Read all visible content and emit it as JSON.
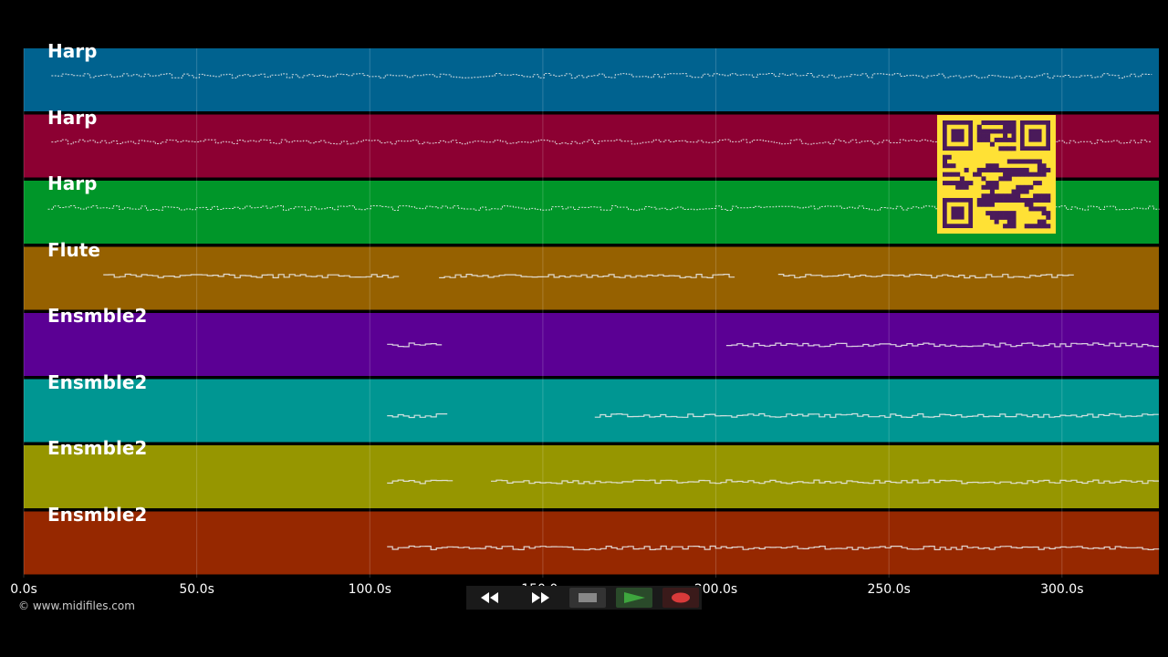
{
  "tracks": [
    {
      "name": "Harp",
      "color": "#00628f"
    },
    {
      "name": "Harp",
      "color": "#8c0032"
    },
    {
      "name": "Harp",
      "color": "#009629"
    },
    {
      "name": "Flute",
      "color": "#966100"
    },
    {
      "name": "Ensmble2",
      "color": "#5b0094"
    },
    {
      "name": "Ensmble2",
      "color": "#009692"
    },
    {
      "name": "Ensmble2",
      "color": "#969600"
    },
    {
      "name": "Ensmble2",
      "color": "#962800"
    }
  ],
  "timeline": {
    "start_seconds": 0,
    "end_seconds": 328,
    "ticks": [
      {
        "value": 0,
        "label": "0.0s"
      },
      {
        "value": 50,
        "label": "50.0s"
      },
      {
        "value": 100,
        "label": "100.0s"
      },
      {
        "value": 150,
        "label": "150.0s"
      },
      {
        "value": 200,
        "label": "200.0s"
      },
      {
        "value": 250,
        "label": "250.0s"
      },
      {
        "value": 300,
        "label": "300.0s"
      }
    ]
  },
  "copyright": "© www.midifiles.com",
  "transport": {
    "buttons": [
      {
        "name": "rewind-button",
        "icon": "rewind-icon"
      },
      {
        "name": "fast-forward-button",
        "icon": "fast-forward-icon"
      },
      {
        "name": "stop-button",
        "icon": "stop-icon"
      },
      {
        "name": "play-button",
        "icon": "play-icon"
      },
      {
        "name": "record-button",
        "icon": "record-icon"
      }
    ],
    "colors": {
      "play": "#3ea63e",
      "record": "#d93a3a",
      "stop": "#888888"
    }
  },
  "qr": {
    "fg": "#4a1a5a",
    "bg": "#ffe135"
  }
}
